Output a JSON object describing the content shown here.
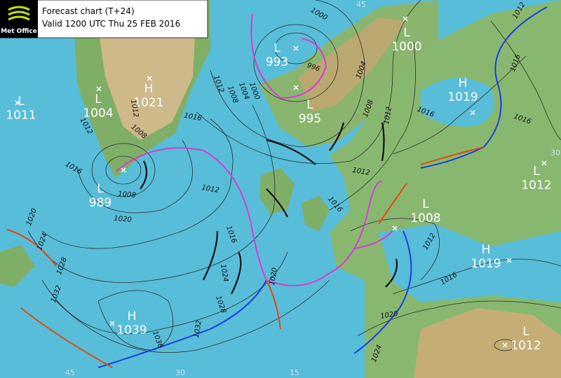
{
  "header": {
    "logo": "Met Office",
    "title": "Forecast chart (T+24)",
    "valid": "Valid 1200 UTC Thu 25 FEB 2016"
  },
  "pressure_centers": [
    {
      "type": "L",
      "value": 1011
    },
    {
      "type": "L",
      "value": 1004
    },
    {
      "type": "H",
      "value": 1021
    },
    {
      "type": "L",
      "value": 989
    },
    {
      "type": "L",
      "value": 993
    },
    {
      "type": "L",
      "value": 995
    },
    {
      "type": "L",
      "value": 1000
    },
    {
      "type": "H",
      "value": 1019
    },
    {
      "type": "L",
      "value": 1012
    },
    {
      "type": "L",
      "value": 1008
    },
    {
      "type": "H",
      "value": 1019
    },
    {
      "type": "H",
      "value": 1039
    },
    {
      "type": "L",
      "value": 1012
    }
  ],
  "isobar_labels": [
    1000,
    996,
    1004,
    1008,
    1012,
    1012,
    1016,
    1016,
    1016,
    1012,
    1008,
    1004,
    1000,
    1012,
    1012,
    1008,
    1016,
    1016,
    1008,
    1020,
    1012,
    1012,
    1016,
    1016,
    1020,
    1024,
    1028,
    1012,
    1016,
    1020,
    1024,
    1032,
    1036,
    1032,
    1028,
    1024,
    1020
  ],
  "graticule_labels": [
    45,
    45,
    30,
    15,
    30
  ]
}
